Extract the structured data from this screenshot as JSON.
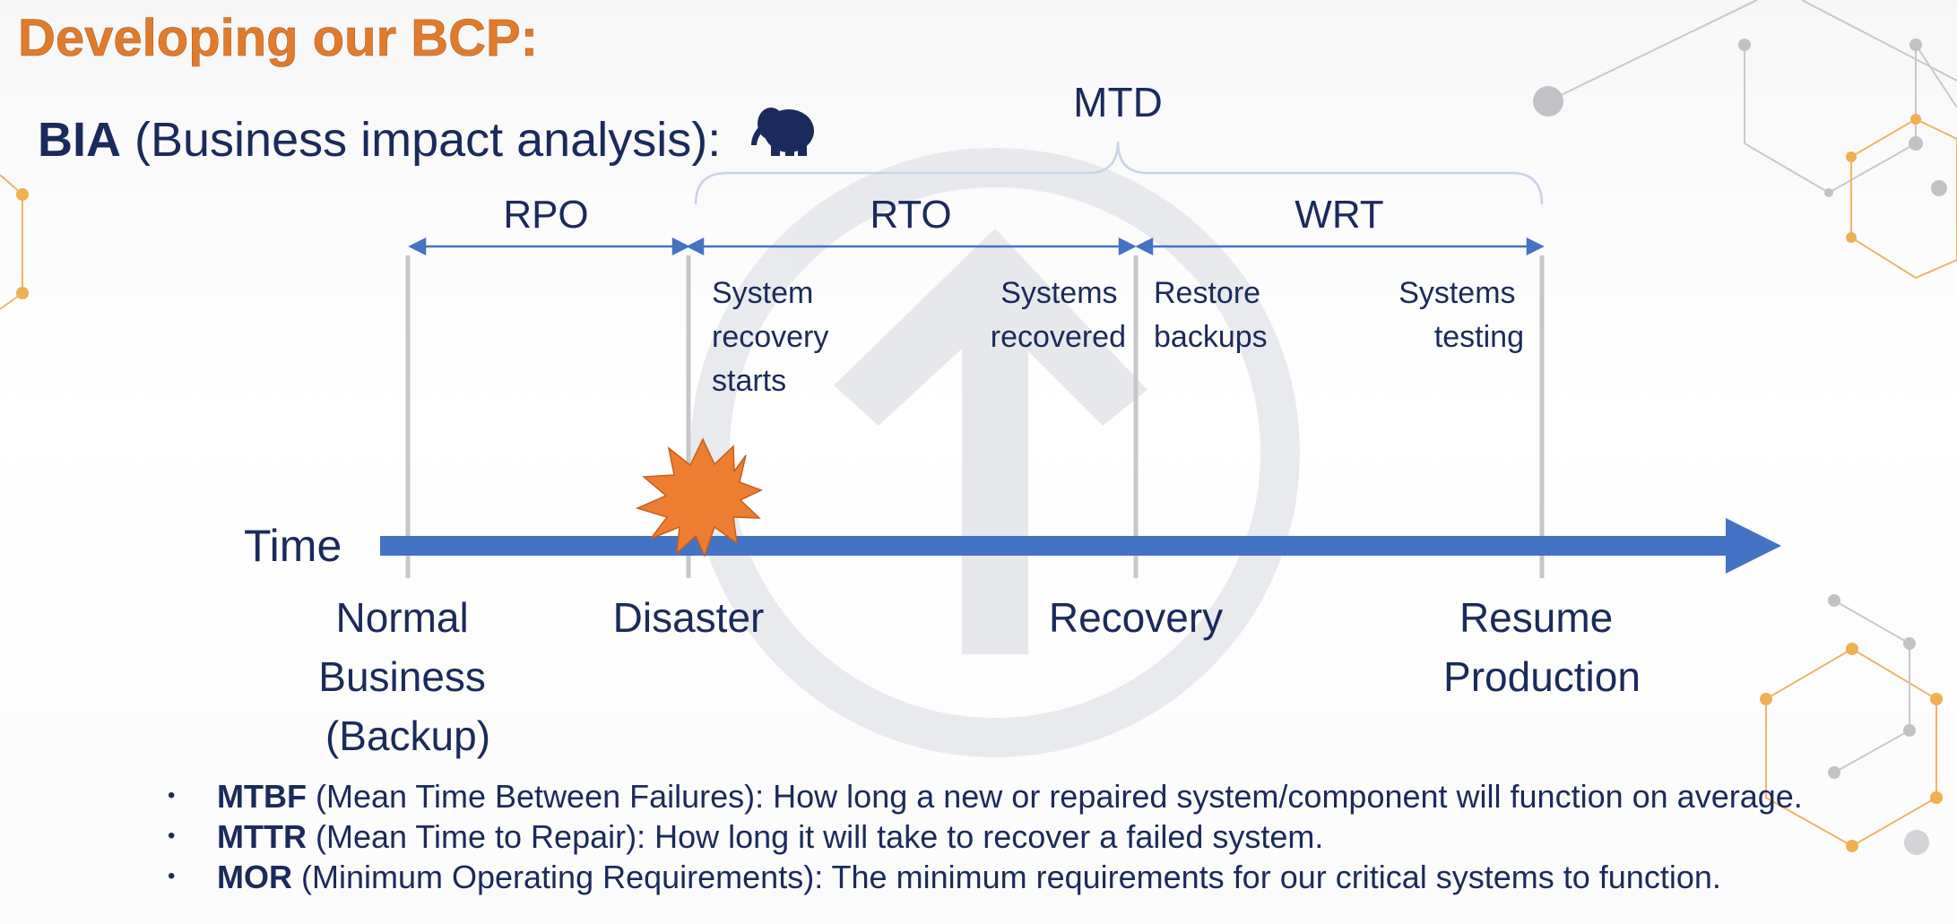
{
  "slide": {
    "title": "Developing our BCP:",
    "subtitle_bold": "BIA",
    "subtitle_rest": " (Business impact analysis):",
    "icon": "elephant-icon",
    "colors": {
      "title": "#e07b2e",
      "text": "#1b2a5c",
      "arrow": "#4472c4",
      "burst": "#ed7d31",
      "bracket": "#c7d3e8",
      "watermark": "#e4e6ea"
    }
  },
  "diagram": {
    "mtd_label": "MTD",
    "rpo_label": "RPO",
    "rto_label": "RTO",
    "wrt_label": "WRT",
    "time_label": "Time",
    "notes": {
      "recovery_starts": [
        "System",
        "recovery",
        "starts"
      ],
      "systems_recovered": [
        "Systems",
        "recovered"
      ],
      "restore_backups": [
        "Restore",
        "backups"
      ],
      "systems_testing": [
        "Systems",
        "testing"
      ]
    },
    "milestones": {
      "normal": [
        "Normal",
        "Business",
        "(Backup)"
      ],
      "disaster": [
        "Disaster"
      ],
      "recovery": [
        "Recovery"
      ],
      "resume": [
        "Resume",
        "Production"
      ]
    }
  },
  "bullets": [
    {
      "term": "MTBF",
      "text": " (Mean Time Between Failures):  How long a new or repaired system/component will function on average."
    },
    {
      "term": "MTTR",
      "text": " (Mean Time to Repair): How long it will take to recover a failed system."
    },
    {
      "term": "MOR",
      "text": " (Minimum Operating Requirements): The minimum requirements for our critical systems to function."
    }
  ]
}
